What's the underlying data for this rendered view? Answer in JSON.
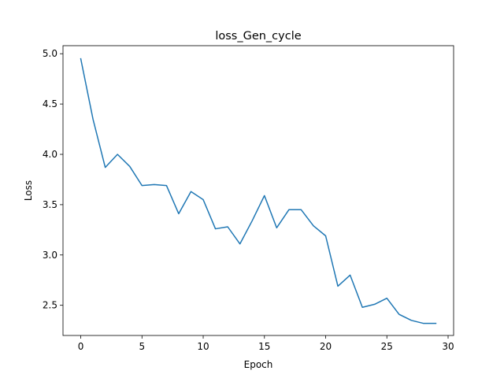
{
  "chart_data": {
    "type": "line",
    "title": "loss_Gen_cycle",
    "xlabel": "Epoch",
    "ylabel": "Loss",
    "xlim": [
      -1.45,
      30.45
    ],
    "ylim": [
      2.2,
      5.08
    ],
    "xticks": [
      0,
      5,
      10,
      15,
      20,
      25,
      30
    ],
    "xtick_labels": [
      "0",
      "5",
      "10",
      "15",
      "20",
      "25",
      "30"
    ],
    "yticks": [
      2.5,
      3.0,
      3.5,
      4.0,
      4.5,
      5.0
    ],
    "ytick_labels": [
      "2.5",
      "3.0",
      "3.5",
      "4.0",
      "4.5",
      "5.0"
    ],
    "grid": false,
    "series": [
      {
        "color": "#1f77b4",
        "x": [
          0,
          1,
          2,
          3,
          4,
          5,
          6,
          7,
          8,
          9,
          10,
          11,
          12,
          13,
          14,
          15,
          16,
          17,
          18,
          19,
          20,
          21,
          22,
          23,
          24,
          25,
          26,
          27,
          28,
          29
        ],
        "y": [
          4.95,
          4.35,
          3.87,
          4.0,
          3.88,
          3.69,
          3.7,
          3.69,
          3.41,
          3.63,
          3.55,
          3.26,
          3.28,
          3.11,
          3.34,
          3.59,
          3.27,
          3.45,
          3.45,
          3.29,
          3.19,
          2.69,
          2.8,
          2.48,
          2.51,
          2.57,
          2.41,
          2.35,
          2.32,
          2.32
        ]
      }
    ]
  }
}
